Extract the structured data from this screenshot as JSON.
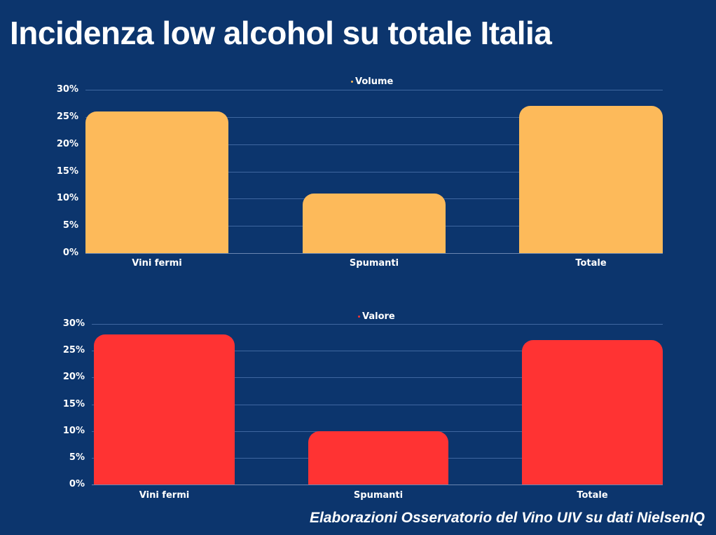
{
  "title": "Incidenza low alcohol su totale Italia",
  "footer": "Elaborazioni Osservatorio del Vino UIV su dati NielsenIQ",
  "colors": {
    "background": "#0c356d",
    "volume": "#fdba5a",
    "valore": "#ff3333",
    "text": "#ffffff",
    "grid": "#3f67a0"
  },
  "chart_data": [
    {
      "type": "bar",
      "title": "Volume",
      "legend": [
        "Volume"
      ],
      "legend_position": "top",
      "categories": [
        "Vini fermi",
        "Spumanti",
        "Totale"
      ],
      "values": [
        26,
        11,
        27
      ],
      "unit": "%",
      "xlabel": "",
      "ylabel": "",
      "ylim": [
        0,
        30
      ],
      "yticks": [
        "0%",
        "5%",
        "10%",
        "15%",
        "20%",
        "25%",
        "30%"
      ],
      "grid": true,
      "color": "#fdba5a"
    },
    {
      "type": "bar",
      "title": "Valore",
      "legend": [
        "Valore"
      ],
      "legend_position": "top",
      "categories": [
        "Vini fermi",
        "Spumanti",
        "Totale"
      ],
      "values": [
        28,
        10,
        27
      ],
      "unit": "%",
      "xlabel": "",
      "ylabel": "",
      "ylim": [
        0,
        30
      ],
      "yticks": [
        "0%",
        "5%",
        "10%",
        "15%",
        "20%",
        "25%",
        "30%"
      ],
      "grid": true,
      "color": "#ff3333"
    }
  ]
}
